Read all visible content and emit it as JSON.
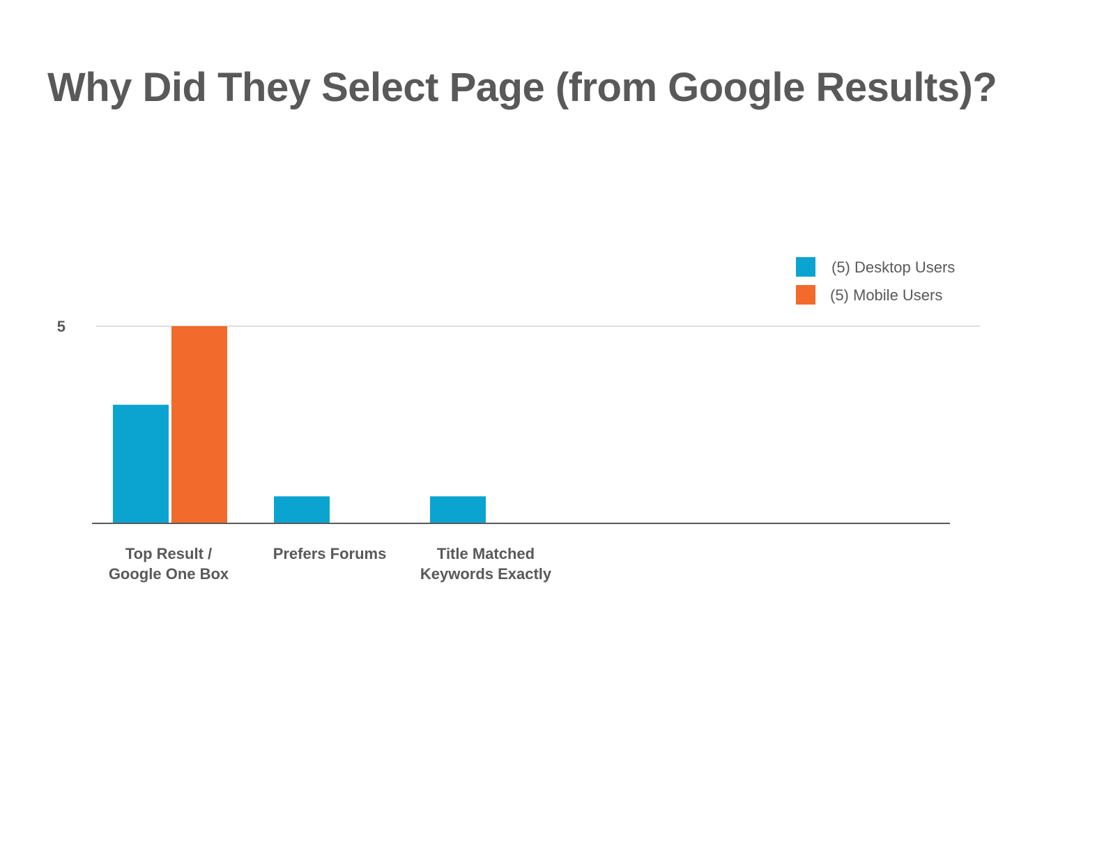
{
  "chart_data": {
    "type": "bar",
    "title": "Why Did They Select Page (from Google Results)?",
    "categories": [
      [
        "Top Result /",
        "Google One Box"
      ],
      [
        "Prefers Forums"
      ],
      [
        "Title Matched",
        "Keywords Exactly"
      ]
    ],
    "series": [
      {
        "name": "(5) Desktop Users",
        "values": [
          3,
          0.67,
          0.67
        ],
        "color": "#0ba4d1"
      },
      {
        "name": "(5) Mobile Users",
        "values": [
          5,
          0,
          0
        ],
        "color": "#f26a2c"
      }
    ],
    "yticks": [
      5
    ],
    "ylim": [
      0,
      5
    ],
    "gridlines": true,
    "legend_position": "top-right",
    "xlabel": "",
    "ylabel": ""
  }
}
